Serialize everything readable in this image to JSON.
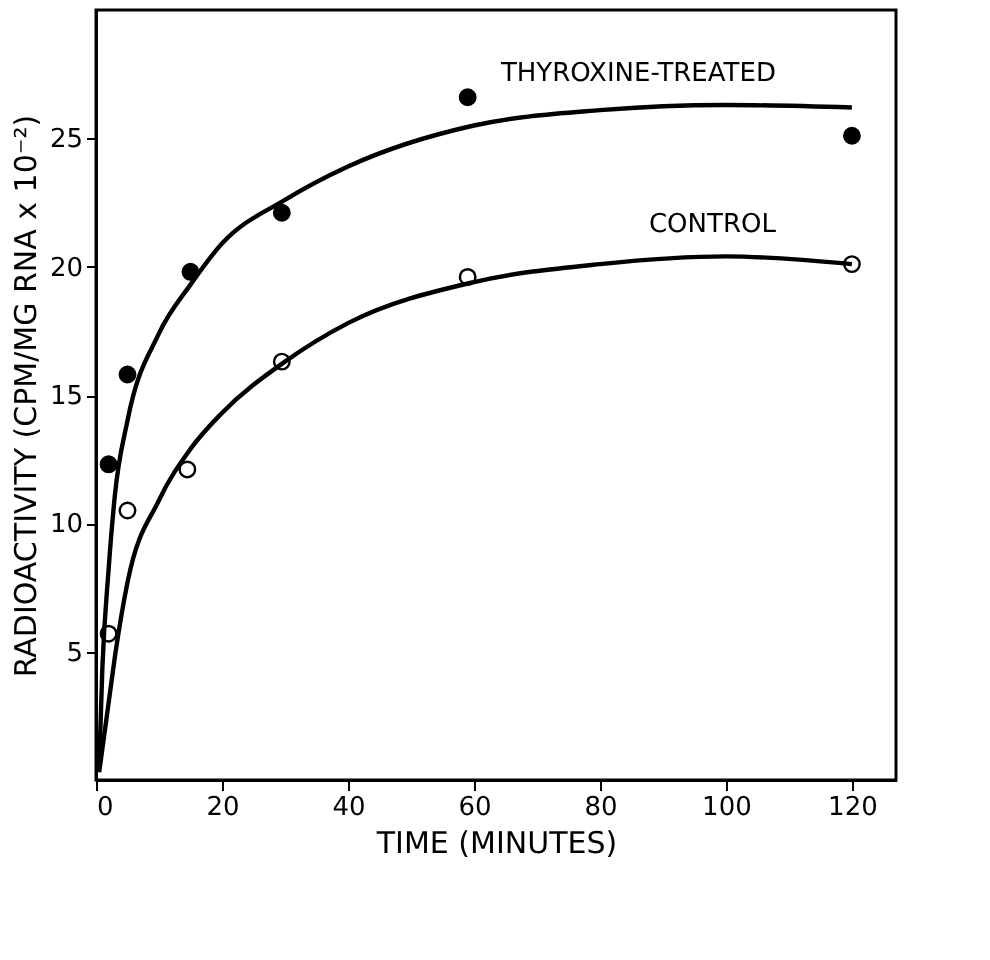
{
  "chart_data": {
    "type": "scatter",
    "xlabel": "TIME (MINUTES)",
    "ylabel": "RADIOACTIVITY (CPM/MG RNA x 10⁻²)",
    "xlim": [
      0,
      127
    ],
    "xticks": [
      0,
      20,
      40,
      60,
      80,
      100,
      120
    ],
    "ylim": [
      0,
      30
    ],
    "yticks": [
      5,
      10,
      15,
      20,
      25
    ],
    "grid": false,
    "marker": "circle",
    "series": [
      {
        "color": "#000000",
        "x": [
          2,
          5,
          15,
          29.5,
          59,
          120
        ],
        "values": [
          12.3,
          15.8,
          19.8,
          22.1,
          26.6,
          25.1
        ]
      },
      {
        "color": "#000000",
        "x": [
          2,
          5,
          14.5,
          29.5,
          59,
          120
        ],
        "values": [
          5.7,
          10.5,
          12.1,
          16.3,
          19.6,
          20.1
        ]
      },
      {
        "type": "line",
        "name": "THYROXINE-TREATED",
        "color": "#000000",
        "line_style": "solid",
        "marker": "none",
        "x": [
          0.5,
          1,
          2,
          3,
          5,
          10,
          15,
          20,
          30,
          40,
          60,
          80,
          100,
          120
        ],
        "values": [
          0.5,
          4.3,
          8.2,
          11.1,
          14,
          17.4,
          19.3,
          20.9,
          22.6,
          23.9,
          25.5,
          26.1,
          26.3,
          26.2
        ]
      },
      {
        "type": "line",
        "name": "CONTROL",
        "color": "#000000",
        "line_style": "solid",
        "marker": "none",
        "x": [
          0.5,
          2,
          3,
          5,
          10,
          15,
          20,
          30,
          40,
          60,
          80,
          100,
          120
        ],
        "values": [
          0.3,
          3,
          4.8,
          7.7,
          10.9,
          12.9,
          14.3,
          16.3,
          17.8,
          19.4,
          20.1,
          20.4,
          20.1
        ]
      }
    ]
  }
}
